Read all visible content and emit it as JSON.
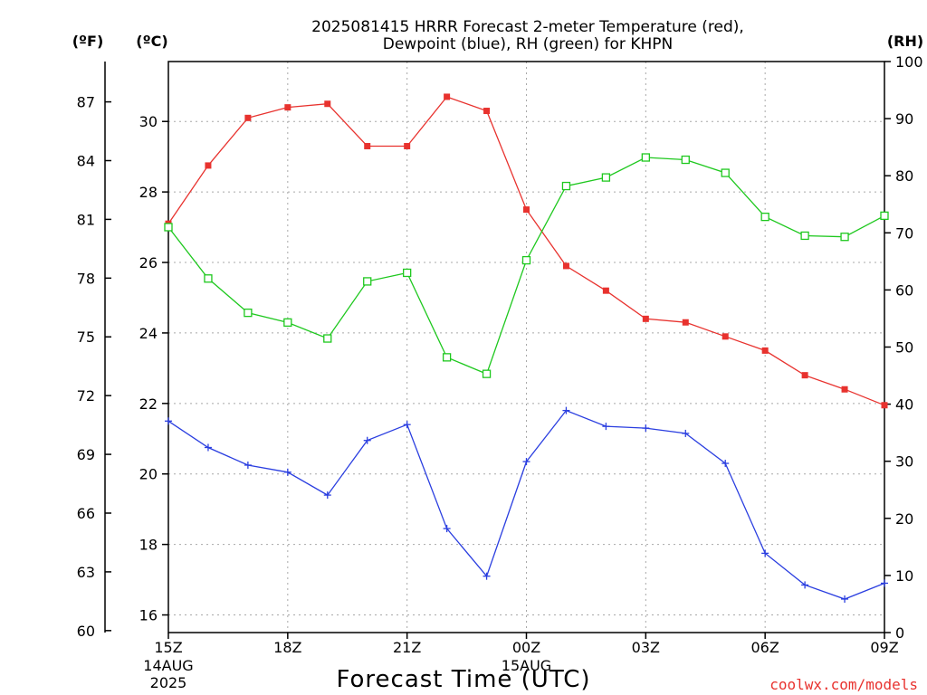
{
  "chart_data": {
    "type": "line",
    "title_line1": "2025081415 HRRR Forecast 2-meter Temperature (red),",
    "title_line2": "Dewpoint (blue), RH (green) for KHPN",
    "xlabel": "Forecast Time (UTC)",
    "credit": "coolwx.com/models",
    "units": {
      "fahrenheit": "(ºF)",
      "celsius": "(ºC)",
      "rh": "(RH)"
    },
    "x_ticks": [
      {
        "hour": 0,
        "label": "15Z",
        "sub1": "14AUG",
        "sub2": "2025"
      },
      {
        "hour": 3,
        "label": "18Z"
      },
      {
        "hour": 6,
        "label": "21Z"
      },
      {
        "hour": 9,
        "label": "00Z",
        "sub1": "15AUG"
      },
      {
        "hour": 12,
        "label": "03Z"
      },
      {
        "hour": 15,
        "label": "06Z"
      },
      {
        "hour": 18,
        "label": "09Z"
      }
    ],
    "xlim": [
      0,
      18
    ],
    "celsius_axis": {
      "lim": [
        15.5,
        31.7
      ],
      "ticks": [
        16,
        18,
        20,
        22,
        24,
        26,
        28,
        30
      ]
    },
    "fahrenheit_axis": {
      "lim": [
        59.9,
        89.06
      ],
      "ticks": [
        60,
        63,
        66,
        69,
        72,
        75,
        78,
        81,
        84,
        87
      ]
    },
    "rh_axis": {
      "lim": [
        0,
        100
      ],
      "ticks": [
        0,
        10,
        20,
        30,
        40,
        50,
        60,
        70,
        80,
        90,
        100
      ]
    },
    "grid": true,
    "series": [
      {
        "name": "Temperature",
        "axis": "celsius",
        "color": "#e8322e",
        "marker": "filled-square",
        "values": [
          27.1,
          28.75,
          30.1,
          30.4,
          30.5,
          29.3,
          29.3,
          30.7,
          30.3,
          27.5,
          25.9,
          25.2,
          24.4,
          24.3,
          23.9,
          23.5,
          22.8,
          22.4,
          21.95
        ]
      },
      {
        "name": "Dewpoint",
        "axis": "celsius",
        "color": "#2a3ee0",
        "marker": "plus",
        "values": [
          21.5,
          20.75,
          20.25,
          20.05,
          19.4,
          20.95,
          21.4,
          18.45,
          17.1,
          20.35,
          21.8,
          21.35,
          21.3,
          21.15,
          20.3,
          17.75,
          16.85,
          16.45,
          16.9
        ]
      },
      {
        "name": "RH",
        "axis": "rh",
        "color": "#1ec81e",
        "marker": "open-square",
        "values": [
          71,
          62,
          56,
          54.3,
          51.5,
          61.5,
          63,
          48.2,
          45.3,
          65.2,
          78.2,
          79.7,
          83.2,
          82.8,
          80.5,
          72.8,
          69.5,
          69.3,
          73
        ]
      }
    ]
  }
}
